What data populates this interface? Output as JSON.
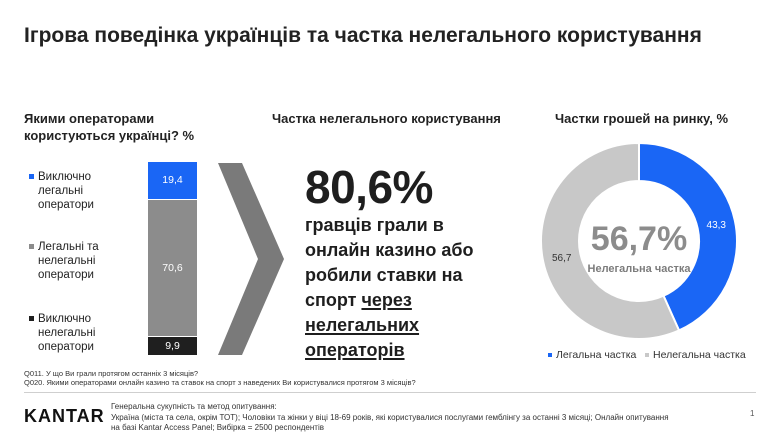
{
  "title": "Ігрова поведінка українців та частка нелегального користування",
  "colors": {
    "blue": "#1a66f5",
    "gray": "#8c8c8c",
    "light_gray": "#c8c8c8",
    "dark": "#1f1f1f"
  },
  "left": {
    "title": "Якими операторами користуються українці? %",
    "legend": [
      {
        "label": "Виключно легальні оператори",
        "color": "#1a66f5"
      },
      {
        "label": "Легальні та нелегальні оператори",
        "color": "#8c8c8c"
      },
      {
        "label": "Виключно нелегальні оператори",
        "color": "#1f1f1f"
      }
    ]
  },
  "middle": {
    "title": "Частка нелегального користування",
    "big_number": "80,6%",
    "text_plain": "гравців грали в онлайн казино або робили ставки на спорт ",
    "text_underlined": "через нелегальних операторів"
  },
  "right": {
    "title": "Частки грошей на ринку, %",
    "center_value": "56,7%",
    "center_label": "Нелегальна частка",
    "legend": [
      {
        "label": "Легальна частка",
        "color": "#1a66f5"
      },
      {
        "label": "Нелегальна частка",
        "color": "#c8c8c8"
      }
    ]
  },
  "chart_data": [
    {
      "type": "bar",
      "stacked": true,
      "categories": [
        "Виключно легальні оператори",
        "Легальні та нелегальні оператори",
        "Виключно нелегальні оператори"
      ],
      "values": [
        19.4,
        70.6,
        9.9
      ],
      "labels": [
        "19,4",
        "70,6",
        "9,9"
      ],
      "colors": [
        "#1a66f5",
        "#8c8c8c",
        "#1f1f1f"
      ]
    },
    {
      "type": "pie",
      "donut": true,
      "categories": [
        "Легальна частка",
        "Нелегальна частка"
      ],
      "values": [
        43.3,
        56.7
      ],
      "labels": [
        "43,3",
        "56,7"
      ],
      "colors": [
        "#1a66f5",
        "#c8c8c8"
      ]
    }
  ],
  "notes": [
    "Q011. У що Ви грали протягом останніх 3 місяців?",
    "Q020. Якими операторами онлайн казино та ставок на спорт з наведених Ви користувалися протягом 3 місяців?"
  ],
  "footer": {
    "logo": "KANTAR",
    "heading": "Генеральна сукупність та метод опитування:",
    "text": "Україна (міста та села, окрім ТОТ); Чоловіки та жінки у віці 18-69 років, які користувалися послугами гемблінгу за останні 3 місяці; Онлайн опитування на базі Kantar Access Panel; Вибірка = 2500 респондентів",
    "page": "1"
  }
}
